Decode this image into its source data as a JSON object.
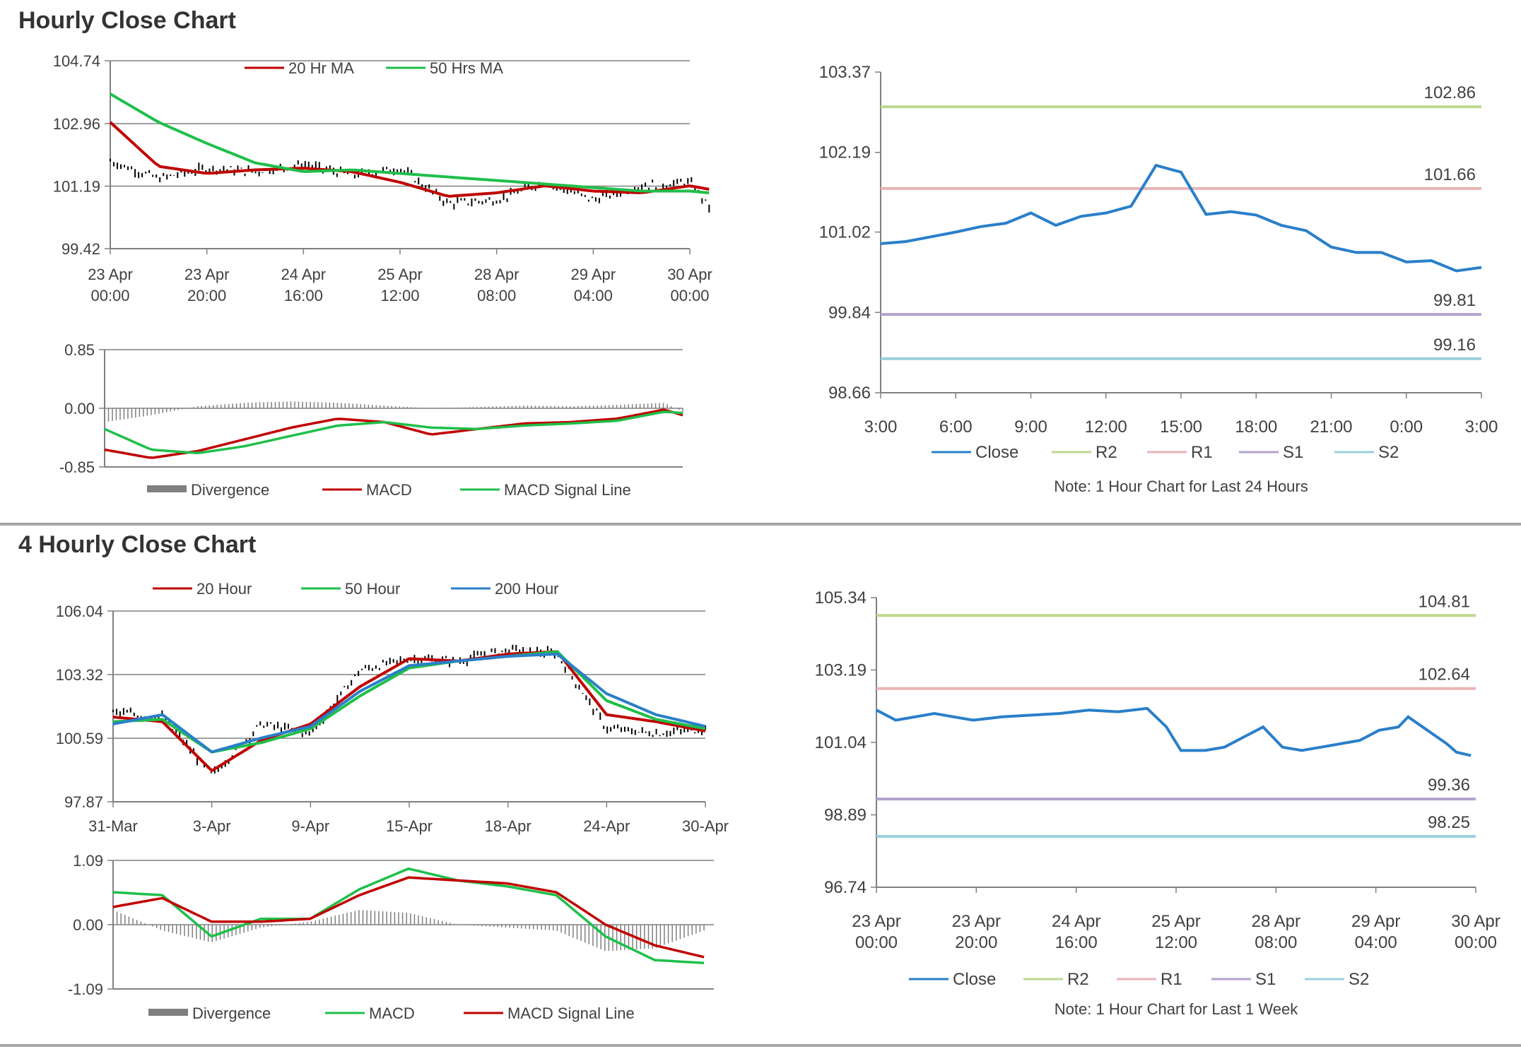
{
  "sections": [
    {
      "title": "Hourly Close Chart"
    },
    {
      "title": "4 Hourly Close Chart"
    }
  ],
  "colors": {
    "red": "#c00000",
    "green": "#1fbf4a",
    "blue": "#2a7fc9",
    "r2": "#bcd88f",
    "r1": "#e8b4b4",
    "s1": "#b3a2cc",
    "s2": "#9bd0dc",
    "bars": "#000000",
    "divergence": "#7f7f7f"
  },
  "chart_data": [
    {
      "id": "hourly_price",
      "type": "line",
      "subtype": "ohlc_with_moving_averages",
      "title": "",
      "ylim": [
        99.42,
        104.74
      ],
      "yticks": [
        "104.74",
        "102.96",
        "101.19",
        "99.42"
      ],
      "xticks": [
        "23 Apr\n00:00",
        "23 Apr\n20:00",
        "24 Apr\n16:00",
        "25 Apr\n12:00",
        "28 Apr\n08:00",
        "29 Apr\n04:00",
        "30 Apr\n00:00"
      ],
      "grid": true,
      "legend": "top",
      "x": [
        0,
        0.5,
        1,
        1.5,
        2,
        2.5,
        3,
        3.5,
        4,
        4.5,
        5,
        5.5,
        6,
        6.2
      ],
      "price": [
        101.9,
        101.4,
        101.7,
        101.6,
        101.8,
        101.5,
        101.7,
        100.7,
        100.8,
        101.3,
        100.8,
        101.2,
        101.3,
        100.6
      ],
      "series": [
        {
          "name": "20 Hr MA",
          "color": "red",
          "values": [
            103.0,
            101.75,
            101.55,
            101.65,
            101.7,
            101.6,
            101.3,
            100.9,
            101.0,
            101.2,
            101.05,
            101.0,
            101.2,
            101.1
          ]
        },
        {
          "name": "50 Hrs MA",
          "color": "green",
          "values": [
            103.8,
            103.0,
            102.4,
            101.85,
            101.6,
            101.65,
            101.55,
            101.45,
            101.35,
            101.25,
            101.15,
            101.05,
            101.05,
            101.0
          ]
        }
      ]
    },
    {
      "id": "hourly_macd",
      "type": "line",
      "subtype": "macd",
      "ylim": [
        -0.85,
        0.85
      ],
      "yticks": [
        "0.85",
        "0.00",
        "-0.85"
      ],
      "grid": false,
      "legend": "bottom",
      "x": [
        0,
        0.5,
        1,
        1.5,
        2,
        2.5,
        3,
        3.5,
        4,
        4.5,
        5,
        5.5,
        6,
        6.2
      ],
      "series": [
        {
          "name": "Divergence",
          "color": "divergence",
          "values": [
            -0.2,
            -0.1,
            0.03,
            0.08,
            0.1,
            0.08,
            0.04,
            0.0,
            0.02,
            0.04,
            0.03,
            0.05,
            0.08,
            -0.05
          ]
        },
        {
          "name": "MACD",
          "color": "red",
          "values": [
            -0.6,
            -0.72,
            -0.62,
            -0.45,
            -0.28,
            -0.15,
            -0.2,
            -0.38,
            -0.3,
            -0.22,
            -0.2,
            -0.15,
            -0.02,
            -0.1
          ]
        },
        {
          "name": "MACD Signal Line",
          "color": "green",
          "values": [
            -0.3,
            -0.6,
            -0.65,
            -0.55,
            -0.4,
            -0.25,
            -0.2,
            -0.28,
            -0.3,
            -0.25,
            -0.22,
            -0.18,
            -0.05,
            -0.07
          ]
        }
      ]
    },
    {
      "id": "hourly_24h",
      "type": "line",
      "title": "",
      "ylim": [
        98.66,
        103.37
      ],
      "yticks": [
        "103.37",
        "102.19",
        "101.02",
        "99.84",
        "98.66"
      ],
      "xticks": [
        "3:00",
        "6:00",
        "9:00",
        "12:00",
        "15:00",
        "18:00",
        "21:00",
        "0:00",
        "3:00"
      ],
      "grid": false,
      "legend": "bottom",
      "note": "Note: 1 Hour Chart for Last 24 Hours",
      "levels": [
        {
          "name": "R2",
          "value": 102.86,
          "label": "102.86",
          "color": "r2"
        },
        {
          "name": "R1",
          "value": 101.66,
          "label": "101.66",
          "color": "r1"
        },
        {
          "name": "S1",
          "value": 99.81,
          "label": "99.81",
          "color": "s1"
        },
        {
          "name": "S2",
          "value": 99.16,
          "label": "99.16",
          "color": "s2"
        }
      ],
      "series": [
        {
          "name": "Close",
          "color": "blue",
          "x": [
            0,
            1,
            2,
            3,
            4,
            5,
            6,
            7,
            8,
            9,
            10,
            11,
            12,
            13,
            14,
            15,
            16,
            17,
            18,
            19,
            20,
            21,
            22,
            23,
            24
          ],
          "values": [
            100.85,
            100.88,
            100.95,
            101.02,
            101.1,
            101.15,
            101.3,
            101.12,
            101.25,
            101.3,
            101.4,
            102.0,
            101.9,
            101.28,
            101.32,
            101.27,
            101.12,
            101.04,
            100.8,
            100.72,
            100.72,
            100.58,
            100.6,
            100.45,
            100.5
          ]
        }
      ]
    },
    {
      "id": "four_hourly_price",
      "type": "line",
      "subtype": "ohlc_with_moving_averages",
      "title": "",
      "ylim": [
        97.87,
        106.04
      ],
      "yticks": [
        "106.04",
        "103.32",
        "100.59",
        "97.87"
      ],
      "xticks": [
        "31-Mar",
        "3-Apr",
        "9-Apr",
        "15-Apr",
        "18-Apr",
        "24-Apr",
        "30-Apr"
      ],
      "grid": true,
      "legend": "top",
      "x": [
        0,
        0.5,
        1,
        1.5,
        2,
        2.5,
        3,
        3.5,
        4,
        4.5,
        5,
        5.5,
        6
      ],
      "price": [
        101.7,
        101.5,
        99.0,
        101.2,
        100.8,
        103.5,
        104.0,
        103.9,
        104.4,
        104.2,
        101.0,
        100.8,
        101.0
      ],
      "series": [
        {
          "name": "20 Hour",
          "color": "red",
          "values": [
            101.5,
            101.3,
            99.2,
            100.5,
            101.2,
            102.8,
            104.0,
            103.9,
            104.2,
            104.3,
            101.6,
            101.3,
            100.9
          ]
        },
        {
          "name": "50 Hour",
          "color": "green",
          "values": [
            101.3,
            101.4,
            100.0,
            100.4,
            101.0,
            102.4,
            103.6,
            103.9,
            104.1,
            104.3,
            102.2,
            101.4,
            101.0
          ]
        },
        {
          "name": "200 Hour",
          "color": "blue",
          "values": [
            101.2,
            101.6,
            100.0,
            100.6,
            101.1,
            102.6,
            103.7,
            103.9,
            104.1,
            104.2,
            102.5,
            101.6,
            101.1
          ]
        }
      ]
    },
    {
      "id": "four_hourly_macd",
      "type": "line",
      "subtype": "macd",
      "ylim": [
        -1.09,
        1.09
      ],
      "yticks": [
        "1.09",
        "0.00",
        "-1.09"
      ],
      "grid": false,
      "legend": "bottom",
      "x": [
        0,
        0.5,
        1,
        1.5,
        2,
        2.5,
        3,
        3.5,
        4,
        4.5,
        5,
        5.5,
        6
      ],
      "series": [
        {
          "name": "Divergence",
          "color": "divergence",
          "values": [
            0.25,
            -0.1,
            -0.3,
            -0.05,
            0.05,
            0.25,
            0.2,
            0.0,
            -0.05,
            -0.1,
            -0.45,
            -0.4,
            -0.1
          ]
        },
        {
          "name": "MACD",
          "color": "green",
          "values": [
            0.55,
            0.5,
            -0.2,
            0.1,
            0.1,
            0.6,
            0.95,
            0.75,
            0.65,
            0.5,
            -0.2,
            -0.6,
            -0.65
          ]
        },
        {
          "name": "MACD Signal Line",
          "color": "red",
          "values": [
            0.3,
            0.45,
            0.05,
            0.05,
            0.1,
            0.5,
            0.8,
            0.75,
            0.7,
            0.55,
            0.0,
            -0.35,
            -0.55
          ]
        }
      ]
    },
    {
      "id": "four_hourly_week",
      "type": "line",
      "title": "",
      "ylim": [
        96.74,
        105.34
      ],
      "yticks": [
        "105.34",
        "103.19",
        "101.04",
        "98.89",
        "96.74"
      ],
      "xticks": [
        "23 Apr\n00:00",
        "23 Apr\n20:00",
        "24 Apr\n16:00",
        "25 Apr\n12:00",
        "28 Apr\n08:00",
        "29 Apr\n04:00",
        "30 Apr\n00:00"
      ],
      "grid": false,
      "legend": "bottom",
      "note": "Note: 1 Hour Chart for Last 1 Week",
      "levels": [
        {
          "name": "R2",
          "value": 104.81,
          "label": "104.81",
          "color": "r2"
        },
        {
          "name": "R1",
          "value": 102.64,
          "label": "102.64",
          "color": "r1"
        },
        {
          "name": "S1",
          "value": 99.36,
          "label": "99.36",
          "color": "s1"
        },
        {
          "name": "S2",
          "value": 98.25,
          "label": "98.25",
          "color": "s2"
        }
      ],
      "series": [
        {
          "name": "Close",
          "color": "blue",
          "x": [
            0,
            0.2,
            0.4,
            0.6,
            0.8,
            1.0,
            1.3,
            1.6,
            1.9,
            2.2,
            2.5,
            2.8,
            3.0,
            3.15,
            3.4,
            3.6,
            3.8,
            4.0,
            4.2,
            4.4,
            4.6,
            4.8,
            5.0,
            5.2,
            5.4,
            5.5,
            5.7,
            5.9,
            6.0,
            6.15
          ],
          "values": [
            102.0,
            101.7,
            101.8,
            101.9,
            101.8,
            101.7,
            101.8,
            101.85,
            101.9,
            102.0,
            101.95,
            102.05,
            101.5,
            100.8,
            100.8,
            100.9,
            101.2,
            101.5,
            100.9,
            100.8,
            100.9,
            101.0,
            101.1,
            101.4,
            101.5,
            101.8,
            101.4,
            101.0,
            100.75,
            100.65
          ]
        }
      ]
    }
  ]
}
